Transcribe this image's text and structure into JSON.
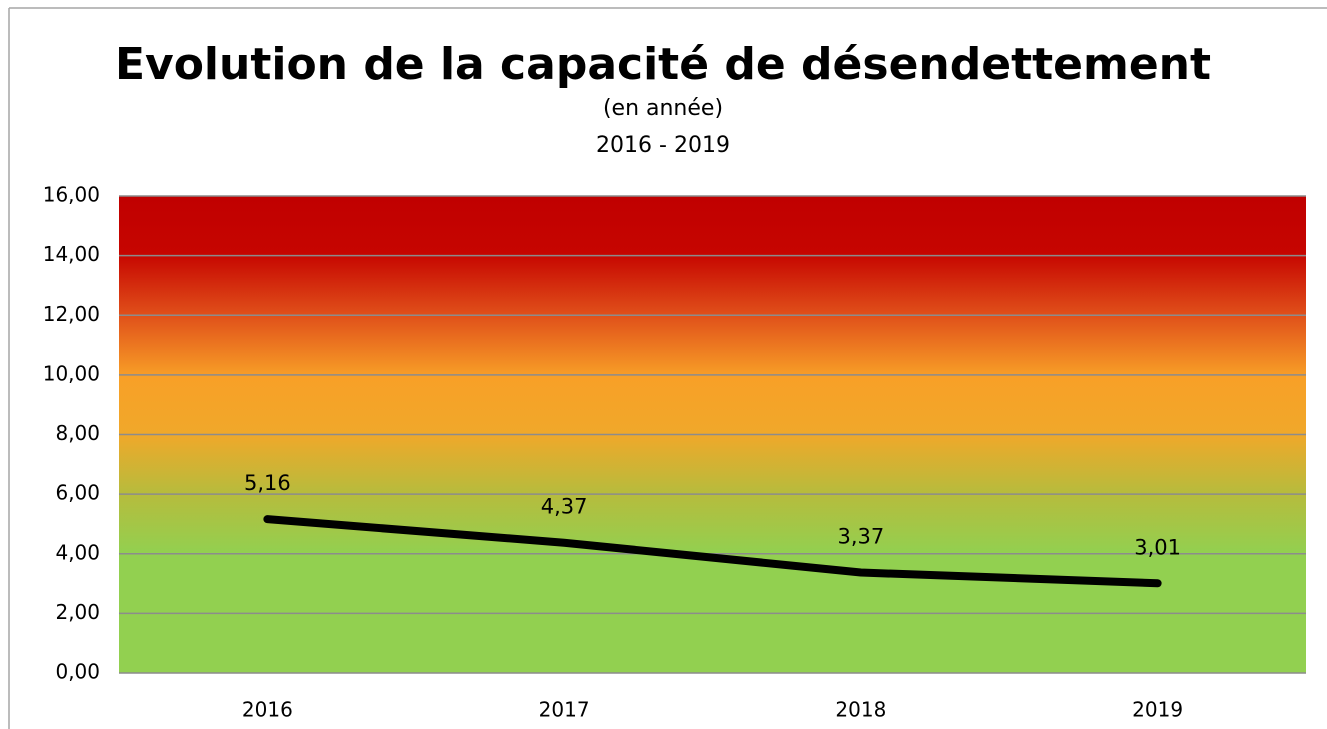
{
  "chart_data": {
    "type": "line",
    "title": "Evolution de la capacité de désendettement",
    "subtitle": [
      "(en année)",
      "2016 - 2019"
    ],
    "categories": [
      "2016",
      "2017",
      "2018",
      "2019"
    ],
    "series": [
      {
        "color": "#000000",
        "values": [
          5.16,
          4.37,
          3.37,
          3.01
        ],
        "value_labels": [
          "5,16",
          "4,37",
          "3,37",
          "3,01"
        ]
      }
    ],
    "ylim": [
      0,
      16
    ],
    "yticks": [
      {
        "value": 0,
        "label": "0,00"
      },
      {
        "value": 2,
        "label": "2,00"
      },
      {
        "value": 4,
        "label": "4,00"
      },
      {
        "value": 6,
        "label": "6,00"
      },
      {
        "value": 8,
        "label": "8,00"
      },
      {
        "value": 10,
        "label": "10,00"
      },
      {
        "value": 12,
        "label": "12,00"
      },
      {
        "value": 14,
        "label": "14,00"
      },
      {
        "value": 16,
        "label": "16,00"
      }
    ],
    "grid": true
  }
}
